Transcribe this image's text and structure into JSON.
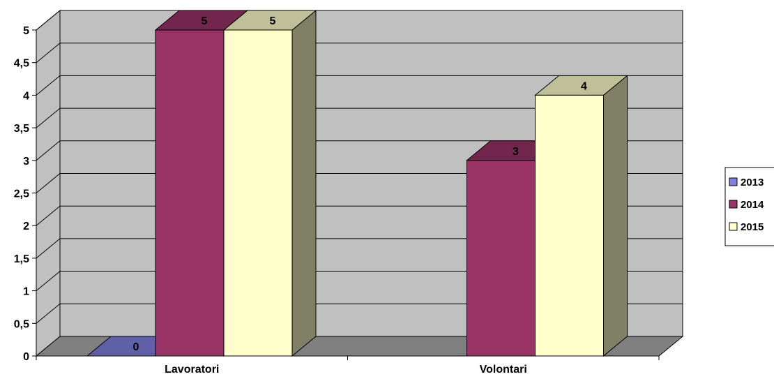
{
  "chart_data": {
    "type": "bar",
    "title": "",
    "xlabel": "",
    "ylabel": "",
    "categories": [
      "Lavoratori",
      "Volontari"
    ],
    "series": [
      {
        "name": "2013",
        "values": [
          0,
          null
        ],
        "color": "#8080e0",
        "data_labels": [
          "0",
          ""
        ]
      },
      {
        "name": "2014",
        "values": [
          5,
          3
        ],
        "color": "#993366",
        "data_labels": [
          "5",
          "3"
        ]
      },
      {
        "name": "2015",
        "values": [
          5,
          4
        ],
        "color": "#ffffcc",
        "data_labels": [
          "5",
          "4"
        ]
      }
    ],
    "ylim": [
      0,
      5
    ],
    "yticks": [
      "0",
      "0,5",
      "1",
      "1,5",
      "2",
      "2,5",
      "3",
      "3,5",
      "4",
      "4,5",
      "5"
    ],
    "grid": true,
    "style": "3d-column",
    "legend_position": "right",
    "wall_color": "#c0c0c0",
    "floor_color": "#808080"
  }
}
